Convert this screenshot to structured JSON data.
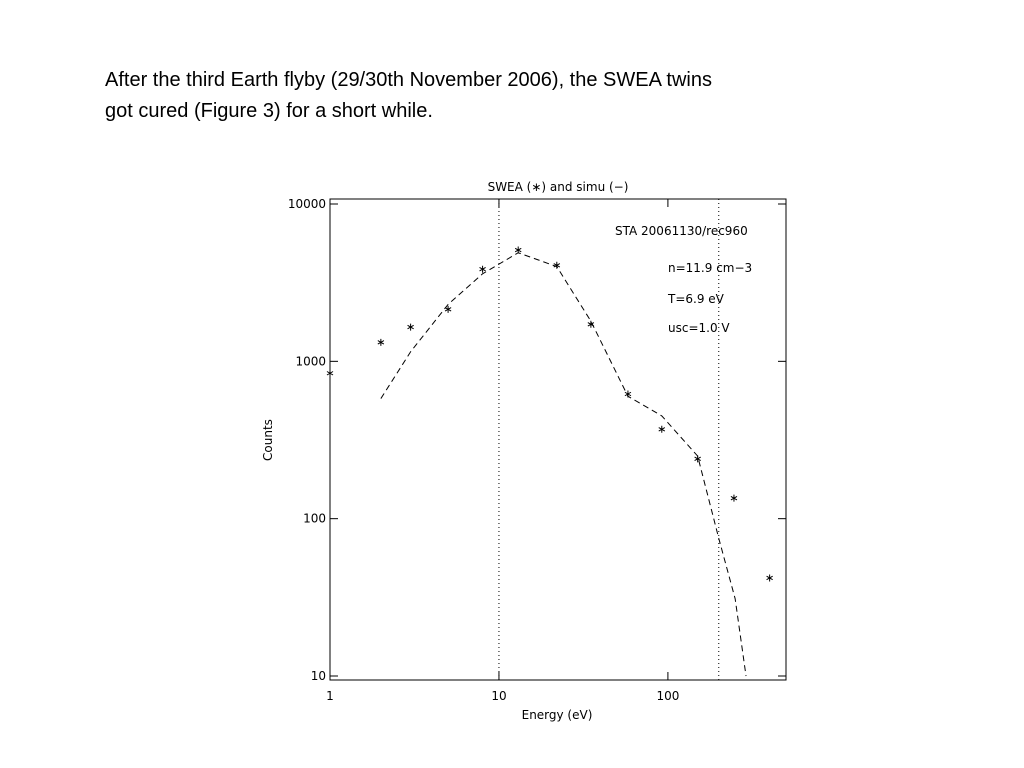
{
  "text": {
    "lines": [
      "After the third Earth flyby (29/30th November 2006), the SWEA twins",
      "got cured (Figure 3) for a short while."
    ]
  },
  "chart_data": {
    "type": "scatter",
    "title": "SWEA (∗) and simu (−)",
    "x_label": "Energy (eV)",
    "y_label": "Counts",
    "x_log": true,
    "y_log": true,
    "xlim": [
      1,
      500
    ],
    "ylim": [
      10,
      10000
    ],
    "xticks": [
      1,
      10,
      100
    ],
    "yticks": [
      10,
      100,
      1000,
      10000
    ],
    "vlines": [
      10,
      200
    ],
    "annotations": [
      "STA 20061130/rec960",
      "n=11.9 cm−3",
      "T=6.9 eV",
      "usc=1.0 V"
    ],
    "series": [
      {
        "style": "markers",
        "color": "#000000",
        "x": [
          1,
          2,
          3,
          5,
          8,
          13,
          22,
          35,
          58,
          92,
          150,
          246,
          400
        ],
        "values": [
          840,
          1320,
          1650,
          2140,
          3850,
          5100,
          4080,
          1720,
          620,
          370,
          240,
          135,
          42
        ]
      },
      {
        "style": "dashed",
        "color": "#000000",
        "x": [
          2,
          3,
          5,
          8,
          13,
          22,
          35,
          58,
          92,
          150,
          200,
          250,
          290
        ],
        "values": [
          580,
          1150,
          2300,
          3600,
          4900,
          4000,
          1800,
          600,
          450,
          250,
          75,
          31,
          10
        ]
      }
    ]
  }
}
